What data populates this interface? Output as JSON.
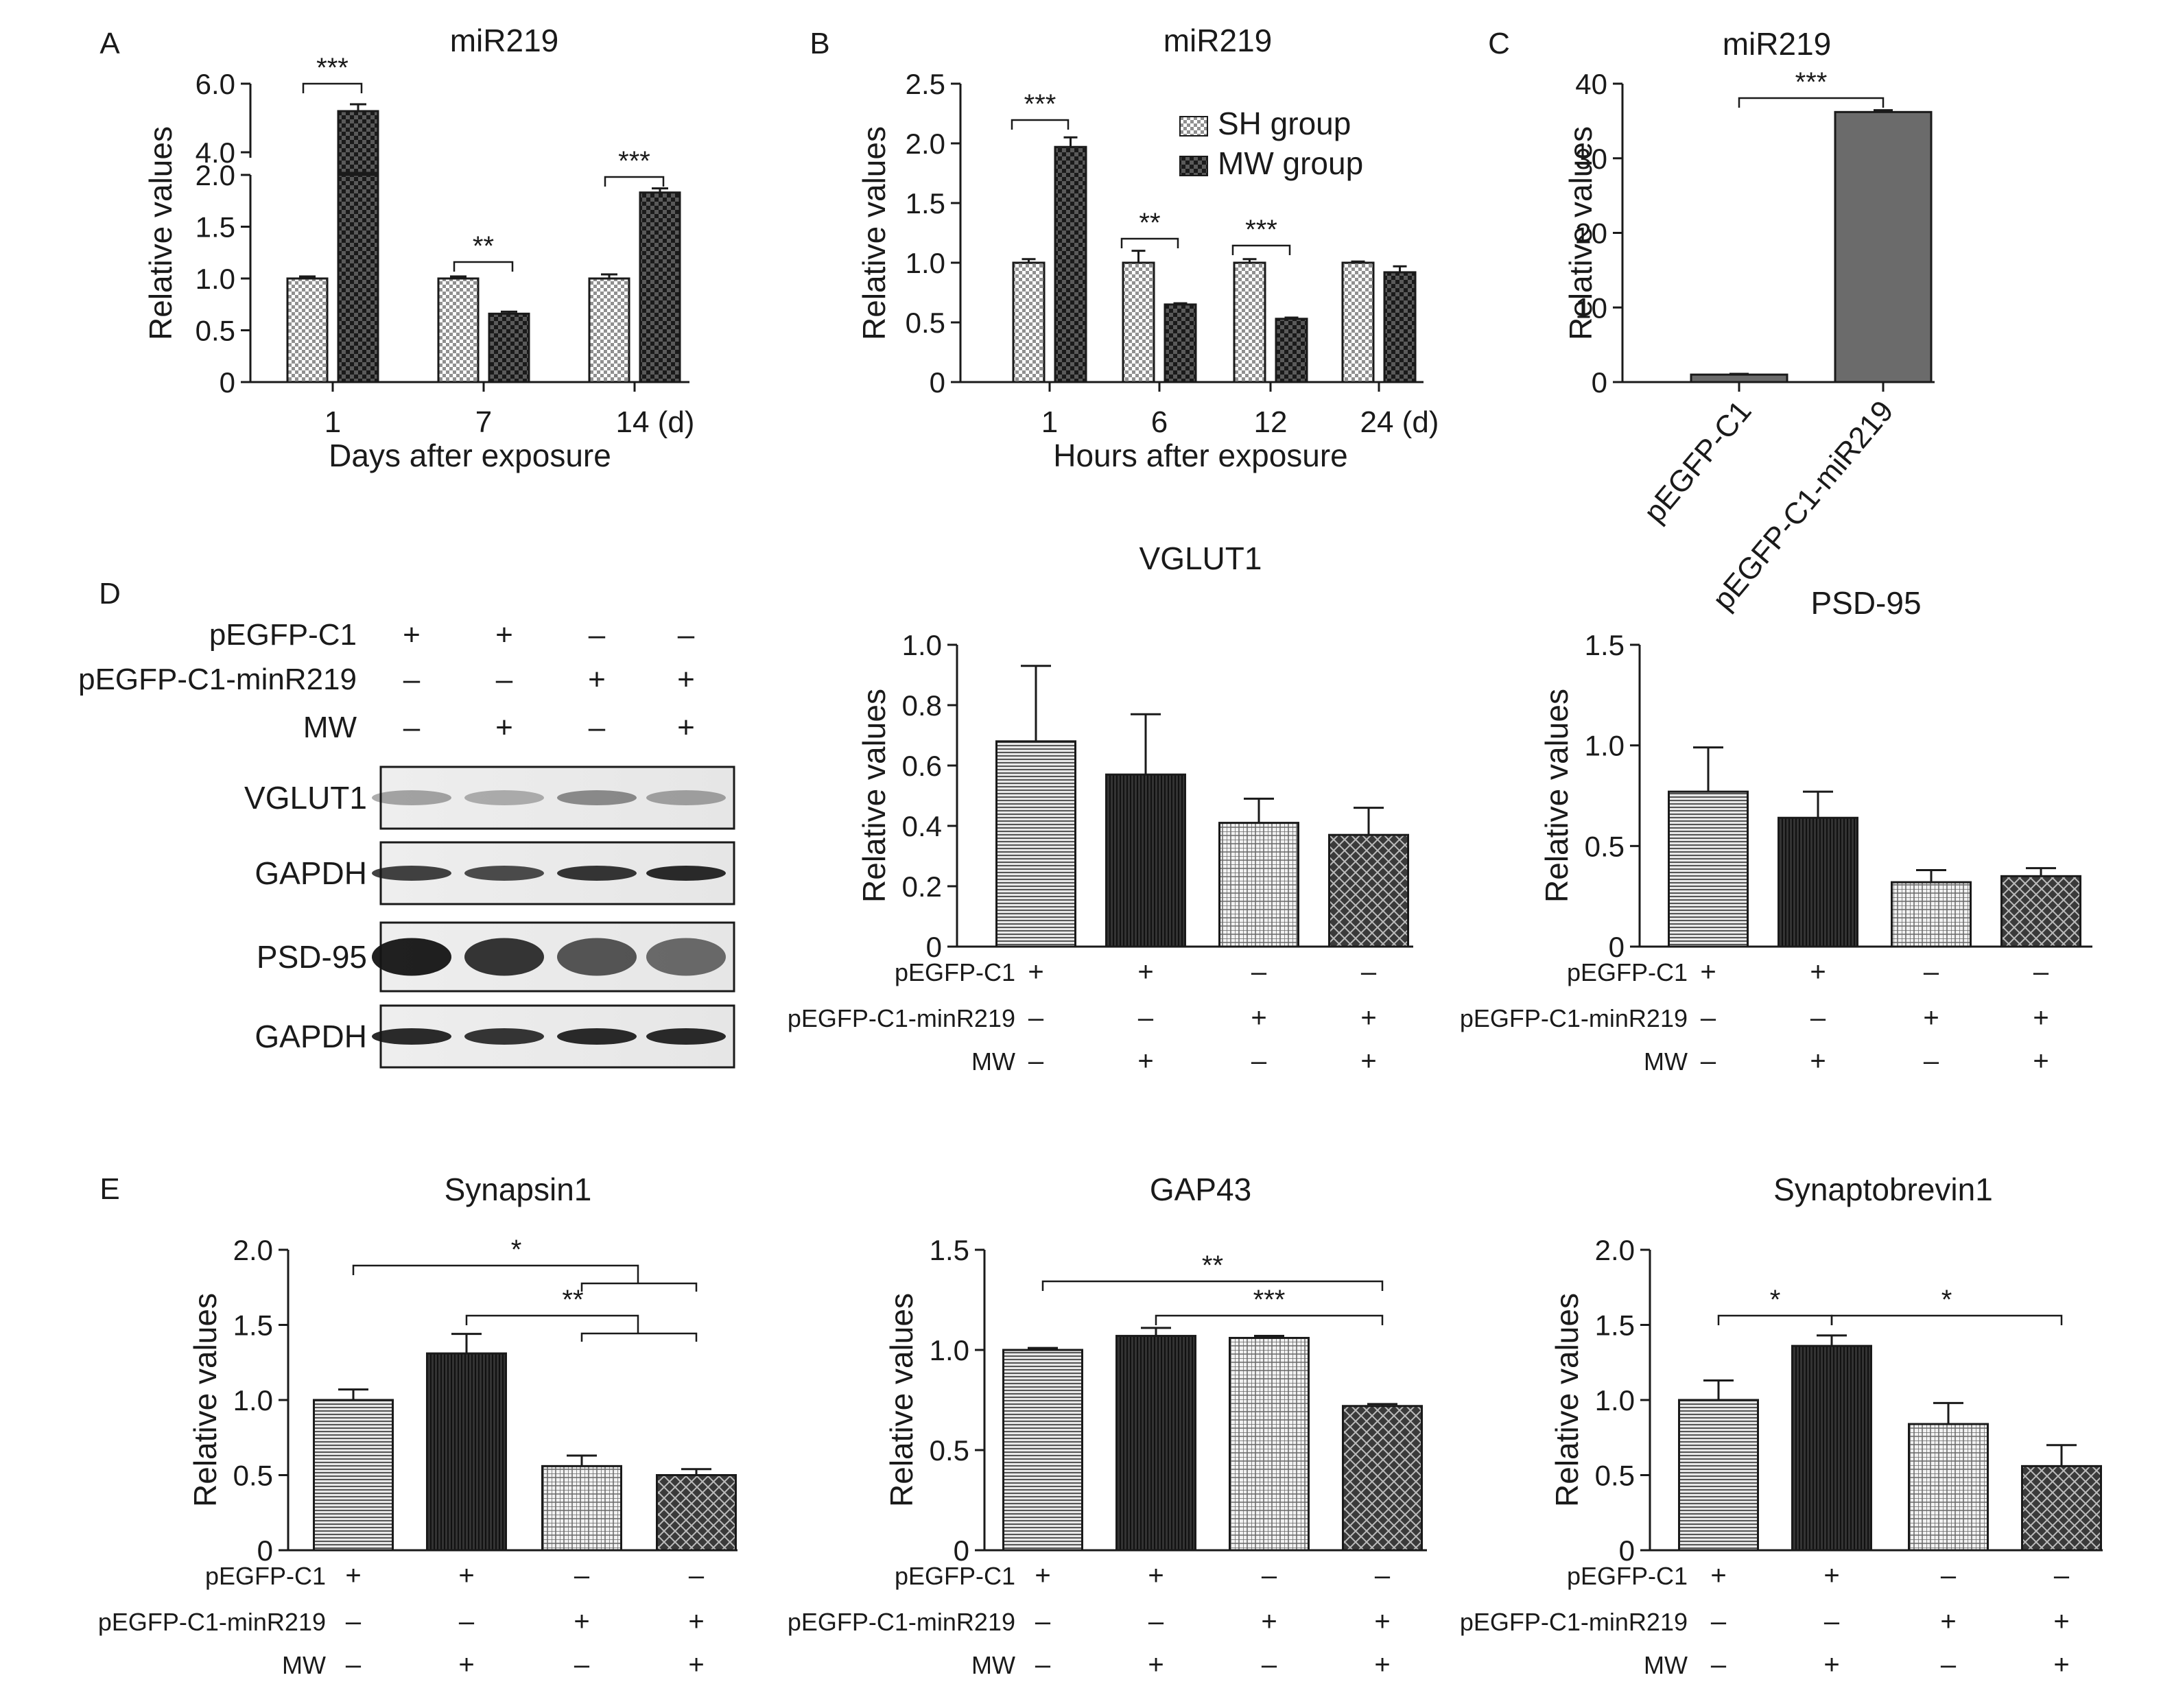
{
  "chart_data": [
    {
      "panel": "A",
      "type": "bar",
      "title": "miR219",
      "xlabel": "Days after exposure",
      "ylabel": "Relative values",
      "categories": [
        "1",
        "7",
        "14 (d)"
      ],
      "series": [
        {
          "name": "SH group",
          "values": [
            1.0,
            1.0,
            1.0
          ],
          "errors": [
            0.02,
            0.02,
            0.04
          ]
        },
        {
          "name": "MW group",
          "values": [
            5.2,
            0.66,
            1.83
          ],
          "errors": [
            0.2,
            0.02,
            0.04
          ]
        }
      ],
      "axis_break": {
        "lower": [
          0,
          2.0
        ],
        "upper": [
          3.0,
          6.0
        ]
      },
      "yticks_lower": [
        "0",
        "0.5",
        "1.0",
        "1.5",
        "2.0"
      ],
      "yticks_upper": [
        "4.0",
        "6.0"
      ],
      "significance": [
        {
          "category": "1",
          "label": "***"
        },
        {
          "category": "7",
          "label": "**"
        },
        {
          "category": "14 (d)",
          "label": "***"
        }
      ]
    },
    {
      "panel": "B",
      "type": "bar",
      "title": "miR219",
      "xlabel": "Hours after exposure",
      "ylabel": "Relative values",
      "categories": [
        "1",
        "6",
        "12",
        "24 (d)"
      ],
      "series": [
        {
          "name": "SH group",
          "values": [
            1.0,
            1.0,
            1.0,
            1.0
          ],
          "errors": [
            0.03,
            0.1,
            0.03,
            0.01
          ]
        },
        {
          "name": "MW group",
          "values": [
            1.97,
            0.65,
            0.53,
            0.92
          ],
          "errors": [
            0.08,
            0.01,
            0.01,
            0.05
          ]
        }
      ],
      "ylim": [
        0,
        2.5
      ],
      "yticks": [
        "0",
        "0.5",
        "1.0",
        "1.5",
        "2.0",
        "2.5"
      ],
      "legend": {
        "position": "top-right",
        "entries": [
          "SH group",
          "MW group"
        ]
      },
      "significance": [
        {
          "category": "1",
          "label": "***"
        },
        {
          "category": "6",
          "label": "**"
        },
        {
          "category": "12",
          "label": "***"
        }
      ]
    },
    {
      "panel": "C",
      "type": "bar",
      "title": "miR219",
      "ylabel": "Relative values",
      "categories": [
        "pEGFP-C1",
        "pEGFP-C1-miR219"
      ],
      "values": [
        1.0,
        36.2
      ],
      "errors": [
        0.1,
        0.25
      ],
      "ylim": [
        0,
        40
      ],
      "yticks": [
        "0",
        "10",
        "20",
        "30",
        "40"
      ],
      "significance": [
        {
          "from": "pEGFP-C1",
          "to": "pEGFP-C1-miR219",
          "label": "***"
        }
      ]
    },
    {
      "panel": "D-VGLUT1",
      "type": "bar",
      "title": "VGLUT1",
      "ylabel": "Relative values",
      "values": [
        0.68,
        0.57,
        0.41,
        0.37
      ],
      "errors": [
        0.25,
        0.2,
        0.08,
        0.09
      ],
      "ylim": [
        0,
        1.0
      ],
      "yticks": [
        "0",
        "0.2",
        "0.4",
        "0.6",
        "0.8",
        "1.0"
      ]
    },
    {
      "panel": "D-PSD-95",
      "type": "bar",
      "title": "PSD-95",
      "ylabel": "Relative values",
      "values": [
        0.77,
        0.64,
        0.32,
        0.35
      ],
      "errors": [
        0.22,
        0.13,
        0.06,
        0.04
      ],
      "ylim": [
        0,
        1.5
      ],
      "yticks": [
        "0",
        "0.5",
        "1.0",
        "1.5"
      ]
    },
    {
      "panel": "E-Synapsin1",
      "type": "bar",
      "title": "Synapsin1",
      "ylabel": "Relative values",
      "values": [
        1.0,
        1.31,
        0.56,
        0.5
      ],
      "errors": [
        0.07,
        0.13,
        0.07,
        0.04
      ],
      "ylim": [
        0,
        2.0
      ],
      "yticks": [
        "0",
        "0.5",
        "1.0",
        "1.5",
        "2.0"
      ],
      "significance": [
        "*",
        "**"
      ]
    },
    {
      "panel": "E-GAP43",
      "type": "bar",
      "title": "GAP43",
      "ylabel": "Relative values",
      "values": [
        1.0,
        1.07,
        1.06,
        0.72
      ],
      "errors": [
        0.01,
        0.04,
        0.01,
        0.01
      ],
      "ylim": [
        0,
        1.5
      ],
      "yticks": [
        "0",
        "0.5",
        "1.0",
        "1.5"
      ],
      "significance": [
        "**",
        "***"
      ]
    },
    {
      "panel": "E-Synaptobrevin1",
      "type": "bar",
      "title": "Synaptobrevin1",
      "ylabel": "Relative values",
      "values": [
        1.0,
        1.36,
        0.84,
        0.56
      ],
      "errors": [
        0.13,
        0.07,
        0.14,
        0.14
      ],
      "ylim": [
        0,
        2.0
      ],
      "yticks": [
        "0",
        "0.5",
        "1.0",
        "1.5",
        "2.0"
      ],
      "significance": [
        "*",
        "*"
      ]
    }
  ],
  "panel_letters": [
    "A",
    "B",
    "C",
    "D",
    "E"
  ],
  "conditions": {
    "row_labels": [
      "pEGFP-C1",
      "pEGFP-C1-minR219",
      "MW"
    ],
    "signs": [
      [
        "+",
        "+",
        "–",
        "–"
      ],
      [
        "–",
        "–",
        "+",
        "+"
      ],
      [
        "–",
        "+",
        "–",
        "+"
      ]
    ]
  },
  "blot": {
    "labels": [
      "VGLUT1",
      "GAPDH",
      "PSD-95",
      "GAPDH"
    ]
  }
}
